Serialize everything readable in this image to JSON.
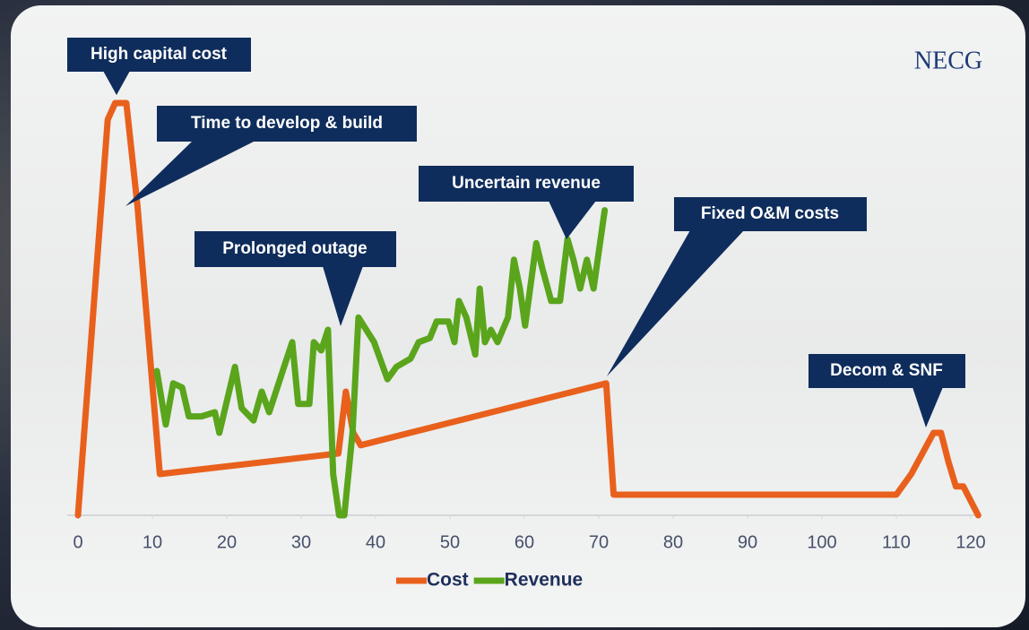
{
  "chart_data": {
    "type": "line",
    "logo": "NECG",
    "annotations": [
      "High capital cost",
      "Time to develop & build",
      "Prolonged outage",
      "Uncertain revenue",
      "Fixed O&M costs",
      "Decom & SNF"
    ],
    "xlim": [
      0,
      120
    ],
    "xticks": [
      0,
      10,
      20,
      30,
      40,
      50,
      60,
      70,
      80,
      90,
      100,
      110,
      120
    ],
    "ylim": [
      0,
      100
    ],
    "legend": "bottom",
    "series": [
      {
        "name": "Cost",
        "color": "#e8601c",
        "x": [
          0,
          4,
          5,
          6.5,
          8,
          11,
          35,
          36,
          37,
          38,
          71,
          72,
          110,
          112,
          115,
          116,
          117,
          118,
          119,
          121
        ],
        "values": [
          0,
          96,
          100,
          100,
          75,
          10,
          15,
          30,
          20,
          17,
          32,
          5,
          5,
          10,
          20,
          20,
          13,
          7,
          7,
          0
        ]
      },
      {
        "name": "Revenue",
        "color": "#5aa51c",
        "x": [
          10.6,
          11.8,
          12.8,
          14,
          14.9,
          16.6,
          18.4,
          19,
          21.1,
          22,
          23.6,
          24.7,
          25.7,
          27.7,
          28.8,
          29.6,
          31.1,
          31.7,
          32.7,
          33.6,
          34.3,
          35.1,
          35.8,
          36.9,
          37.7,
          39.8,
          41.6,
          42.8,
          44.7,
          45.8,
          47.3,
          48.2,
          49.8,
          50.6,
          51.2,
          52.2,
          53.4,
          54,
          54.7,
          55.5,
          56.4,
          57.8,
          58.6,
          59.4,
          60.1,
          61.6,
          62.4,
          63.6,
          64.8,
          65.8,
          66.6,
          67.5,
          68.4,
          69.3,
          70.8
        ],
        "values": [
          35,
          22,
          32,
          31,
          24,
          24,
          25,
          20,
          36,
          26,
          23,
          30,
          25,
          36,
          42,
          27,
          27,
          42,
          40,
          45,
          10,
          0,
          0,
          20,
          48,
          42,
          33,
          36,
          38,
          42,
          43,
          47,
          47,
          42,
          52,
          48,
          39,
          55,
          42,
          45,
          42,
          48,
          62,
          55,
          46,
          66,
          60,
          52,
          52,
          67,
          62,
          55,
          62,
          55,
          74
        ]
      }
    ]
  }
}
